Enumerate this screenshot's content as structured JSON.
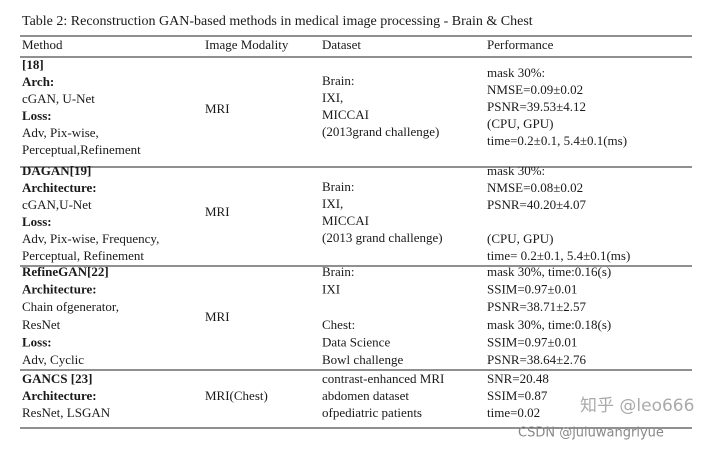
{
  "caption": "Table 2: Reconstruction GAN-based methods in medical image processing - Brain & Chest",
  "table": {
    "columns": [
      "Method",
      "Image Modality",
      "Dataset",
      "Performance"
    ],
    "rows": [
      [
        [
          {
            "text": "[18]",
            "bold": true
          },
          {
            "text": "Arch:",
            "bold": true
          },
          {
            "text": "cGAN, U-Net"
          },
          {
            "text": "Loss:",
            "bold": true
          },
          {
            "text": "Adv, Pix-wise,"
          },
          {
            "text": "Perceptual,Refinement"
          }
        ],
        [
          "MRI"
        ],
        [
          "Brain:",
          "IXI,",
          "MICCAI",
          "(2013grand challenge)"
        ],
        [
          "mask 30%:",
          "NMSE=0.09±0.02",
          "PSNR=39.53±4.12",
          "(CPU, GPU)",
          "time=0.2±0.1, 5.4±0.1(ms)"
        ]
      ],
      [
        [
          {
            "text": "DAGAN[19]",
            "bold": true
          },
          {
            "text": "Architecture:",
            "bold": true
          },
          {
            "text": "cGAN,U-Net"
          },
          {
            "text": "Loss:",
            "bold": true
          },
          {
            "text": "Adv, Pix-wise, Frequency,"
          },
          {
            "text": "Perceptual, Refinement"
          }
        ],
        [
          "MRI"
        ],
        [
          "Brain:",
          "IXI,",
          "MICCAI",
          "(2013 grand challenge)"
        ],
        [
          "mask 30%:",
          "NMSE=0.08±0.02",
          "PSNR=40.20±4.07",
          "(CPU, GPU)",
          "time= 0.2±0.1, 5.4±0.1(ms)"
        ]
      ],
      [
        [
          {
            "text": "RefineGAN[22]",
            "bold": true
          },
          {
            "text": "Architecture:",
            "bold": true
          },
          {
            "text": "Chain ofgenerator,"
          },
          {
            "text": "ResNet"
          },
          {
            "text": "Loss:",
            "bold": true
          },
          {
            "text": "Adv, Cyclic"
          }
        ],
        [
          "MRI"
        ],
        [
          "Brain:",
          "IXI",
          "Chest:",
          "Data Science",
          "Bowl challenge"
        ],
        [
          "mask 30%, time:0.16(s)",
          "SSIM=0.97±0.01",
          "PSNR=38.71±2.57",
          "mask 30%, time:0.18(s)",
          "SSIM=0.97±0.01",
          "PSNR=38.64±2.76"
        ]
      ],
      [
        [
          {
            "text": "GANCS [23]",
            "bold": true
          },
          {
            "text": "Architecture:",
            "bold": true
          },
          {
            "text": "ResNet, LSGAN"
          }
        ],
        [
          "MRI(Chest)"
        ],
        [
          "contrast-enhanced MRI",
          "abdomen dataset",
          "ofpediatric patients"
        ],
        [
          "SNR=20.48",
          "SSIM=0.87",
          "time=0.02"
        ]
      ]
    ]
  },
  "watermarks": [
    "知乎 @leo666",
    "CSDN @juluwangriyue"
  ]
}
